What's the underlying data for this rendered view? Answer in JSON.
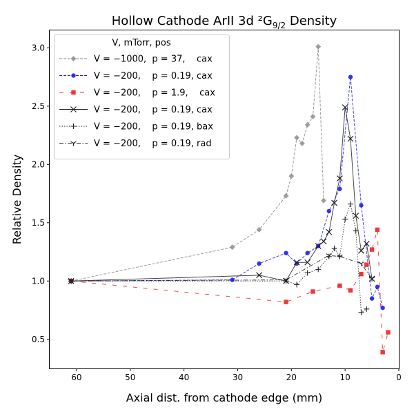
{
  "chart_data": {
    "type": "line",
    "title": "Hollow Cathode ArII 3d ²G",
    "title_sub": "9/2",
    "title_tail": " Density",
    "xlabel": "Axial dist. from cathode edge (mm)",
    "ylabel": "Relative Density",
    "xlim": [
      65,
      0
    ],
    "ylim": [
      0.25,
      3.15
    ],
    "x_ticks": [
      60,
      50,
      40,
      30,
      20,
      10,
      0
    ],
    "y_ticks": [
      0.5,
      1.0,
      1.5,
      2.0,
      2.5,
      3.0
    ],
    "grid": false,
    "legend": {
      "title": "V, mTorr, pos",
      "placement": "top-left",
      "entries": [
        "V = −1000,  p = 37,    cax",
        "V = −200,    p = 0.19, cax",
        "V = −200,    p = 1.9,    cax",
        "V = −200,    p = 0.19, cax",
        "V = −200,    p = 0.19, bax",
        "V = −200,    p = 0.19, rad"
      ]
    },
    "series": [
      {
        "color": "#888888",
        "marker": "diamond",
        "line": "dashed",
        "x": [
          61,
          31,
          26,
          21,
          20,
          19,
          18,
          17,
          16,
          15,
          14
        ],
        "y": [
          1.0,
          1.29,
          1.44,
          1.73,
          1.9,
          2.23,
          2.18,
          2.34,
          2.41,
          3.01,
          1.69
        ]
      },
      {
        "color": "#1f1fee",
        "marker": "circle",
        "line": "dashed",
        "x": [
          61,
          31,
          26,
          21,
          19,
          17,
          15,
          13,
          11,
          9,
          7,
          5,
          4,
          3
        ],
        "y": [
          1.0,
          1.01,
          1.15,
          1.24,
          1.15,
          1.24,
          1.3,
          1.6,
          1.79,
          2.75,
          1.65,
          0.85,
          0.95,
          0.77
        ]
      },
      {
        "color": "#ee2222",
        "marker": "square",
        "line": "dashed-wide",
        "x": [
          61,
          21,
          16,
          11,
          9,
          7,
          6,
          5,
          4,
          3,
          2
        ],
        "y": [
          1.0,
          0.82,
          0.91,
          0.96,
          0.92,
          1.06,
          1.14,
          1.27,
          1.44,
          0.39,
          0.56
        ]
      },
      {
        "color": "#222222",
        "marker": "x",
        "line": "solid",
        "x": [
          61,
          26,
          21,
          19,
          17,
          15,
          14,
          13,
          12,
          11,
          10,
          9,
          8,
          7,
          6,
          5
        ],
        "y": [
          1.0,
          1.05,
          1.0,
          1.16,
          1.16,
          1.3,
          1.34,
          1.42,
          1.67,
          1.88,
          2.49,
          2.22,
          1.56,
          1.26,
          1.32,
          1.02
        ]
      },
      {
        "color": "#222222",
        "marker": "plus",
        "line": "dotted",
        "x": [
          61,
          21,
          19,
          17,
          15,
          13,
          12,
          11,
          10,
          9,
          8,
          7,
          6
        ],
        "y": [
          1.0,
          1.0,
          0.97,
          1.07,
          1.1,
          1.21,
          1.28,
          1.21,
          1.53,
          1.66,
          1.43,
          0.73,
          0.76
        ]
      },
      {
        "color": "#222222",
        "marker": "tri_down",
        "line": "dashdot",
        "x": [
          61,
          21,
          13,
          11,
          7,
          5
        ],
        "y": [
          1.0,
          1.01,
          1.22,
          1.21,
          1.15,
          1.02
        ]
      }
    ]
  }
}
